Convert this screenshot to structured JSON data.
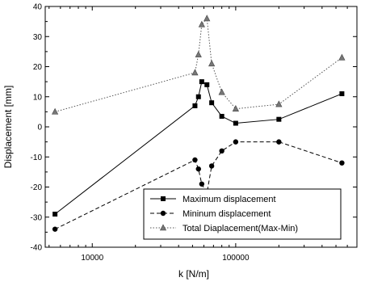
{
  "chart_data": {
    "type": "line",
    "xlabel": "k [N/m]",
    "ylabel": "Displacement [mm]",
    "x_scale": "log",
    "xlim": [
      4700,
      700000
    ],
    "ylim": [
      -40,
      40
    ],
    "x_ticks": [
      {
        "value": 10000,
        "label": "10000"
      },
      {
        "value": 100000,
        "label": "100000"
      }
    ],
    "y_ticks": [
      -40,
      -30,
      -20,
      -10,
      0,
      10,
      20,
      30,
      40
    ],
    "grid": false,
    "legend_position": "bottom-right",
    "series": [
      {
        "name": "Maximum displacement",
        "marker": "square",
        "line": "solid",
        "x": [
          5500,
          52000,
          55000,
          58000,
          63000,
          68000,
          80000,
          100000,
          200000,
          550000
        ],
        "y": [
          -29,
          7,
          10,
          15,
          14,
          8,
          3.5,
          1.2,
          2.5,
          11
        ]
      },
      {
        "name": "Mininum displacement",
        "marker": "circle",
        "line": "dashed",
        "x": [
          5500,
          52000,
          55000,
          58000,
          63000,
          68000,
          80000,
          100000,
          200000,
          550000
        ],
        "y": [
          -34,
          -11,
          -14,
          -19,
          -22,
          -13,
          -8,
          -5,
          -5,
          -12
        ]
      },
      {
        "name": "Total Diaplacement(Max-Min)",
        "marker": "triangle",
        "line": "dotted",
        "x": [
          5500,
          52000,
          55000,
          58000,
          63000,
          68000,
          80000,
          100000,
          200000,
          550000
        ],
        "y": [
          5,
          18,
          24,
          34,
          36,
          21,
          11.5,
          6,
          7.5,
          23
        ]
      }
    ]
  }
}
